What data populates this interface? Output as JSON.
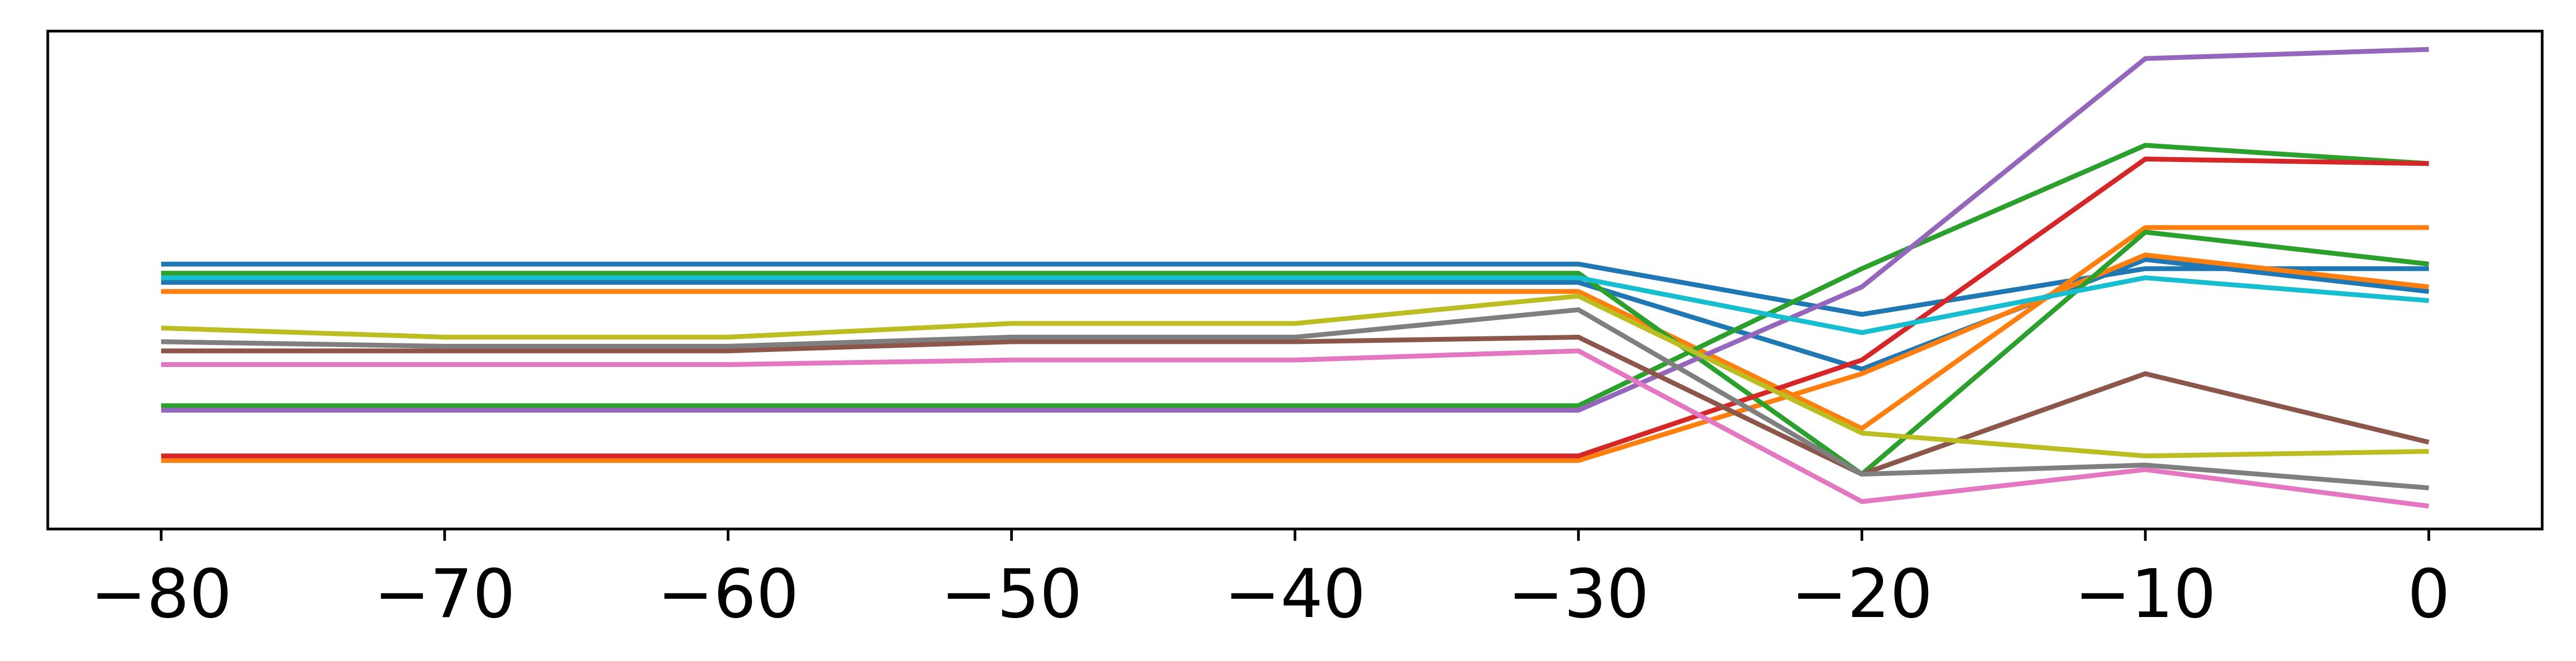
{
  "chart_data": {
    "type": "line",
    "title": "",
    "xlabel": "",
    "ylabel": "",
    "xlim": [
      -84,
      4
    ],
    "ylim": [
      0,
      1.09
    ],
    "grid": false,
    "legend": "none",
    "x": [
      -80,
      -70,
      -60,
      -50,
      -40,
      -30,
      -20,
      -10,
      0
    ],
    "x_tick_labels": [
      "−80",
      "−70",
      "−60",
      "−50",
      "−40",
      "−30",
      "−20",
      "−10",
      "0"
    ],
    "series": [
      {
        "color": "#1f77b4",
        "values": [
          0.58,
          0.58,
          0.58,
          0.58,
          0.58,
          0.58,
          0.47,
          0.57,
          0.57
        ]
      },
      {
        "color": "#1f77b4",
        "values": [
          0.54,
          0.54,
          0.54,
          0.54,
          0.54,
          0.54,
          0.35,
          0.59,
          0.52
        ]
      },
      {
        "color": "#ff7f0e",
        "values": [
          0.52,
          0.52,
          0.52,
          0.52,
          0.52,
          0.52,
          0.22,
          0.66,
          0.66
        ]
      },
      {
        "color": "#ff7f0e",
        "values": [
          0.15,
          0.15,
          0.15,
          0.15,
          0.15,
          0.15,
          0.34,
          0.6,
          0.53
        ]
      },
      {
        "color": "#2ca02c",
        "values": [
          0.56,
          0.56,
          0.56,
          0.56,
          0.56,
          0.56,
          0.12,
          0.65,
          0.58
        ]
      },
      {
        "color": "#2ca02c",
        "values": [
          0.27,
          0.27,
          0.27,
          0.27,
          0.27,
          0.27,
          0.57,
          0.84,
          0.8
        ]
      },
      {
        "color": "#d62728",
        "values": [
          0.16,
          0.16,
          0.16,
          0.16,
          0.16,
          0.16,
          0.37,
          0.81,
          0.8
        ]
      },
      {
        "color": "#9467bd",
        "values": [
          0.26,
          0.26,
          0.26,
          0.26,
          0.26,
          0.26,
          0.53,
          1.03,
          1.05
        ]
      },
      {
        "color": "#8c564b",
        "values": [
          0.39,
          0.39,
          0.39,
          0.41,
          0.41,
          0.42,
          0.12,
          0.34,
          0.19
        ]
      },
      {
        "color": "#e377c2",
        "values": [
          0.36,
          0.36,
          0.36,
          0.37,
          0.37,
          0.39,
          0.06,
          0.13,
          0.05
        ]
      },
      {
        "color": "#7f7f7f",
        "values": [
          0.41,
          0.4,
          0.4,
          0.42,
          0.42,
          0.48,
          0.12,
          0.14,
          0.09
        ]
      },
      {
        "color": "#bcbd22",
        "values": [
          0.44,
          0.42,
          0.42,
          0.45,
          0.45,
          0.51,
          0.21,
          0.16,
          0.17
        ]
      },
      {
        "color": "#17becf",
        "values": [
          0.55,
          0.55,
          0.55,
          0.55,
          0.55,
          0.55,
          0.43,
          0.55,
          0.5
        ]
      }
    ]
  }
}
